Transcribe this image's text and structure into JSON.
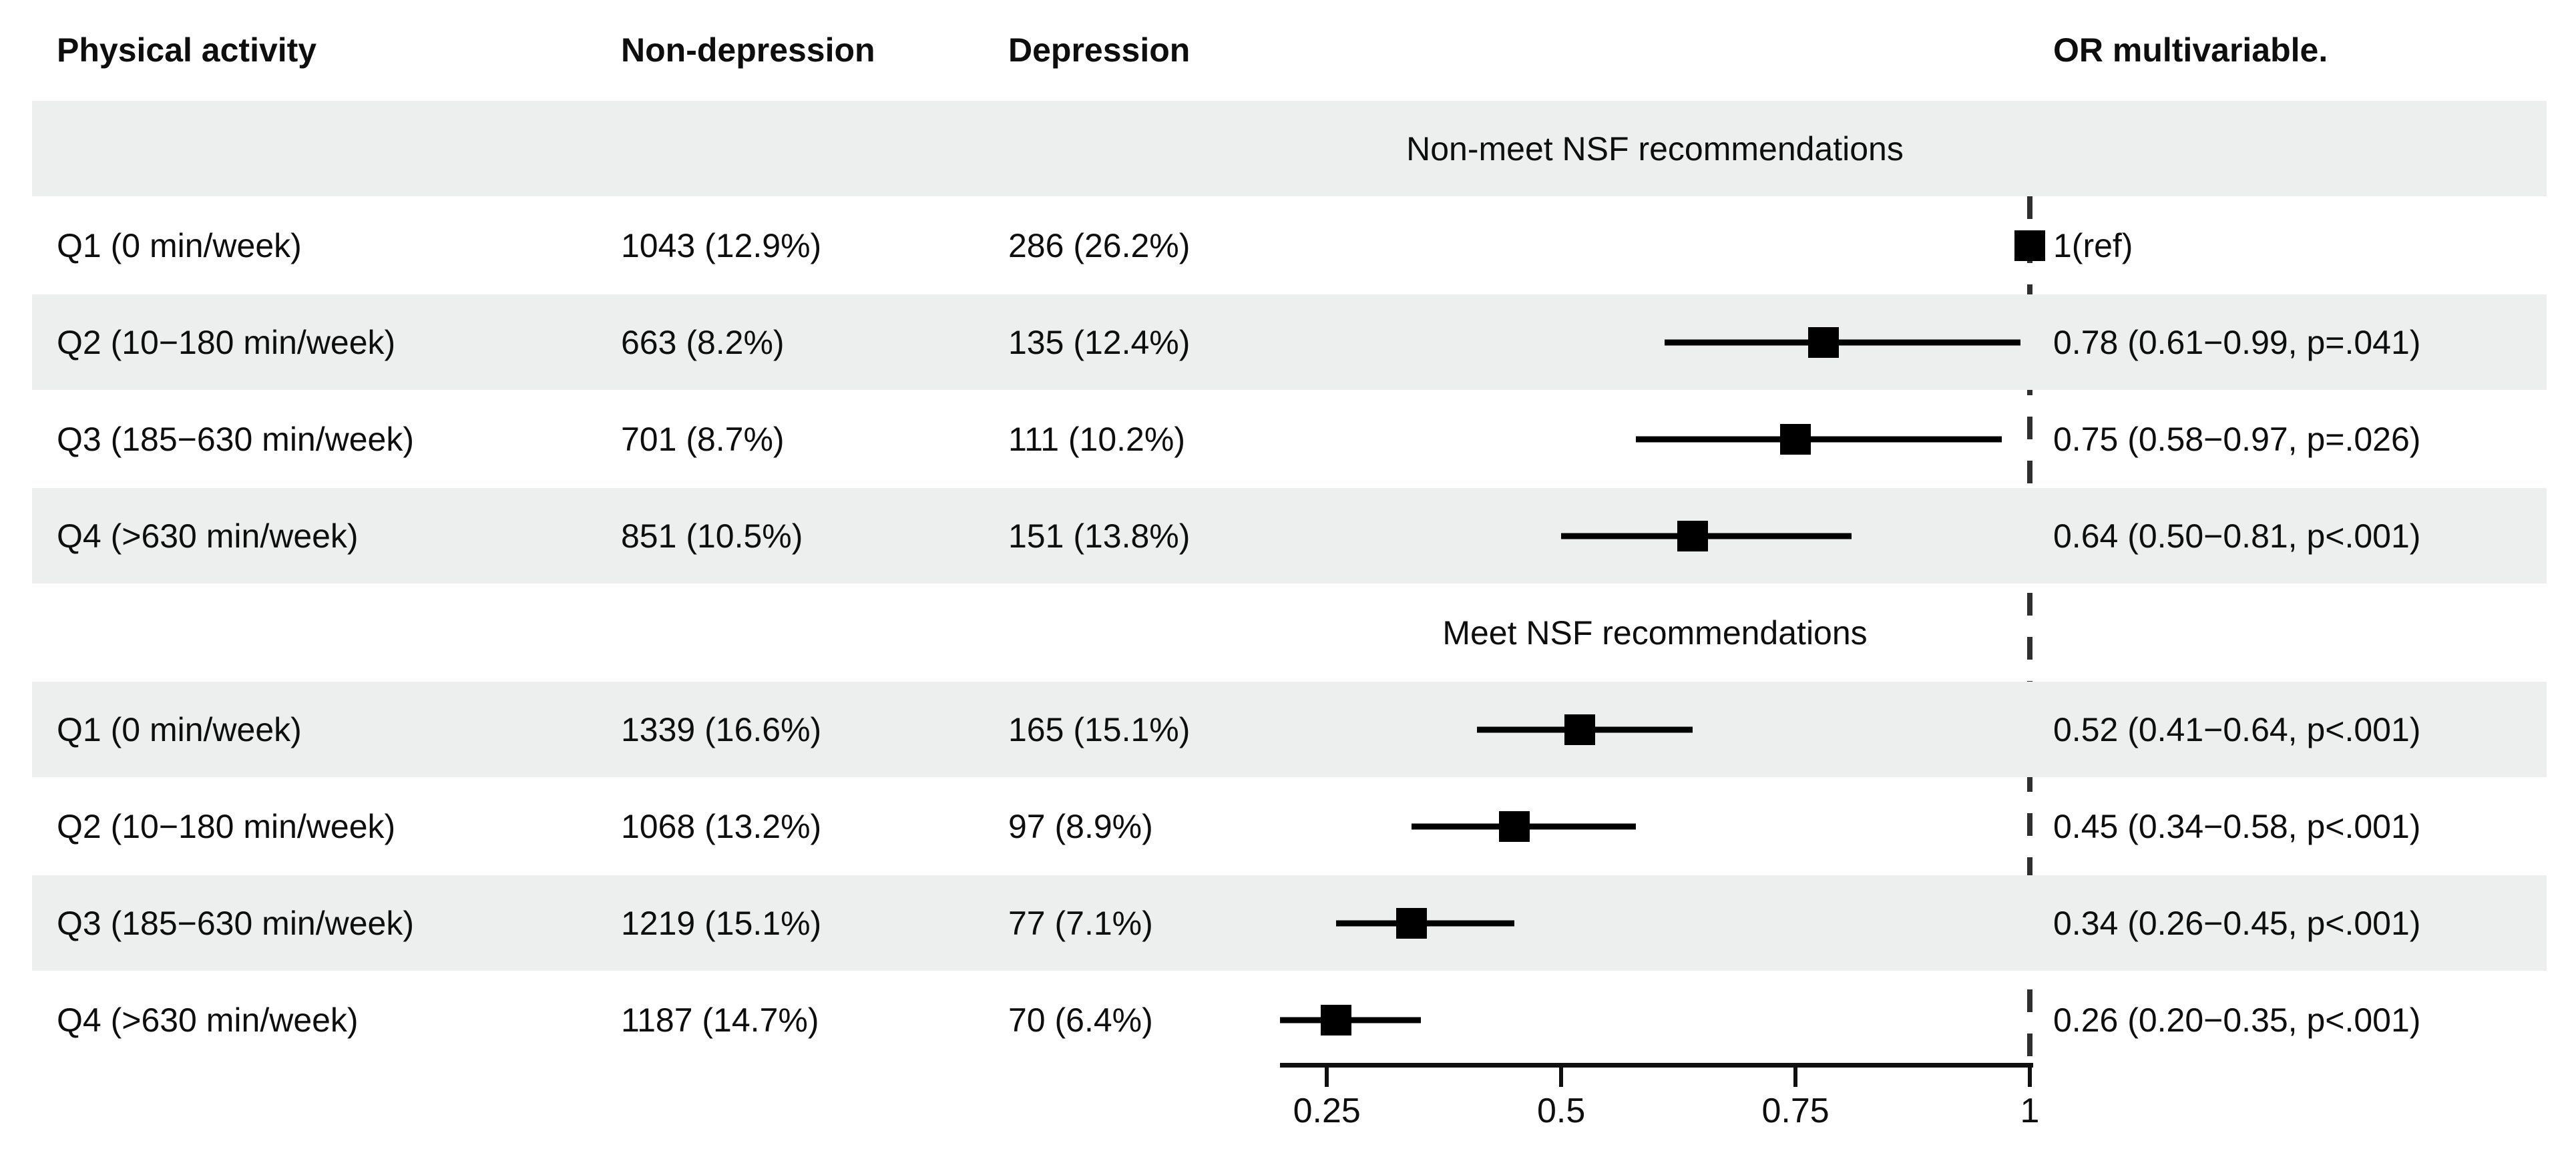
{
  "header": {
    "activity": "Physical activity",
    "non_depression": "Non-depression",
    "depression": "Depression",
    "or": "OR multivariable."
  },
  "colors": {
    "band": "#edefee",
    "marker": "#000000",
    "reference_line": "#303030",
    "text": "#0e0e0e"
  },
  "chart_data": {
    "type": "forest",
    "title": "",
    "xlabel": "",
    "axis": {
      "range": [
        0.2,
        1.0
      ],
      "ticks": [
        0.25,
        0.5,
        0.75,
        1
      ],
      "tick_labels": [
        "0.25",
        "0.5",
        "0.75",
        "1"
      ],
      "reference": 1
    },
    "sections": [
      {
        "label": "Non-meet NSF recommendations",
        "rows": [
          {
            "activity": "Q1 (0 min/week)",
            "non_depression": "1043 (12.9%)",
            "depression": "286 (26.2%)",
            "or": 1,
            "ci_low": null,
            "ci_high": null,
            "or_label": "1(ref)"
          },
          {
            "activity": "Q2 (10−180 min/week)",
            "non_depression": "663 (8.2%)",
            "depression": "135 (12.4%)",
            "or": 0.78,
            "ci_low": 0.61,
            "ci_high": 0.99,
            "or_label": "0.78 (0.61−0.99, p=.041)"
          },
          {
            "activity": "Q3 (185−630 min/week)",
            "non_depression": "701 (8.7%)",
            "depression": "111 (10.2%)",
            "or": 0.75,
            "ci_low": 0.58,
            "ci_high": 0.97,
            "or_label": "0.75 (0.58−0.97, p=.026)"
          },
          {
            "activity": "Q4 (>630 min/week)",
            "non_depression": "851 (10.5%)",
            "depression": "151 (13.8%)",
            "or": 0.64,
            "ci_low": 0.5,
            "ci_high": 0.81,
            "or_label": "0.64 (0.50−0.81, p<.001)"
          }
        ]
      },
      {
        "label": "Meet NSF recommendations",
        "rows": [
          {
            "activity": "Q1 (0 min/week)",
            "non_depression": "1339 (16.6%)",
            "depression": "165 (15.1%)",
            "or": 0.52,
            "ci_low": 0.41,
            "ci_high": 0.64,
            "or_label": "0.52 (0.41−0.64, p<.001)"
          },
          {
            "activity": "Q2 (10−180 min/week)",
            "non_depression": "1068 (13.2%)",
            "depression": "97 (8.9%)",
            "or": 0.45,
            "ci_low": 0.34,
            "ci_high": 0.58,
            "or_label": "0.45 (0.34−0.58, p<.001)"
          },
          {
            "activity": "Q3 (185−630 min/week)",
            "non_depression": "1219 (15.1%)",
            "depression": "77 (7.1%)",
            "or": 0.34,
            "ci_low": 0.26,
            "ci_high": 0.45,
            "or_label": "0.34 (0.26−0.45, p<.001)"
          },
          {
            "activity": "Q4 (>630 min/week)",
            "non_depression": "1187 (14.7%)",
            "depression": "70 (6.4%)",
            "or": 0.26,
            "ci_low": 0.2,
            "ci_high": 0.35,
            "or_label": "0.26 (0.20−0.35, p<.001)"
          }
        ]
      }
    ]
  }
}
